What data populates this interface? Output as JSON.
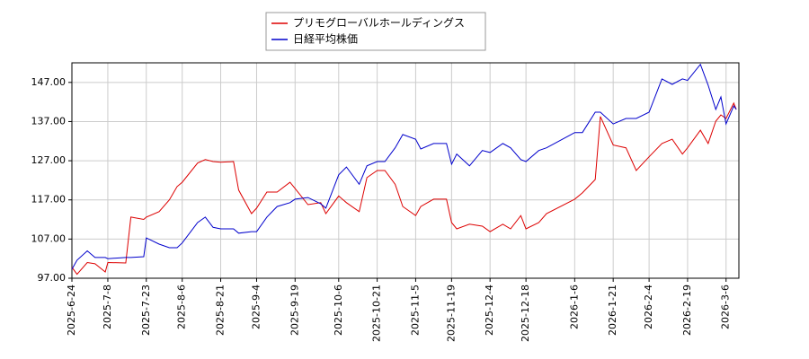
{
  "chart_data": {
    "type": "line",
    "x": [
      "2025-6-24",
      "2025-6-26",
      "2025-6-30",
      "2025-7-3",
      "2025-7-7",
      "2025-7-8",
      "2025-7-15",
      "2025-7-17",
      "2025-7-22",
      "2025-7-23",
      "2025-7-28",
      "2025-8-1",
      "2025-8-4",
      "2025-8-6",
      "2025-8-12",
      "2025-8-15",
      "2025-8-18",
      "2025-8-21",
      "2025-8-26",
      "2025-8-28",
      "2025-9-2",
      "2025-9-4",
      "2025-9-8",
      "2025-9-12",
      "2025-9-17",
      "2025-9-19",
      "2025-9-24",
      "2025-9-29",
      "2025-10-1",
      "2025-10-6",
      "2025-10-9",
      "2025-10-14",
      "2025-10-17",
      "2025-10-21",
      "2025-10-24",
      "2025-10-28",
      "2025-10-31",
      "2025-11-5",
      "2025-11-7",
      "2025-11-12",
      "2025-11-17",
      "2025-11-19",
      "2025-11-21",
      "2025-11-26",
      "2025-12-1",
      "2025-12-4",
      "2025-12-9",
      "2025-12-12",
      "2025-12-16",
      "2025-12-18",
      "2025-12-23",
      "2025-12-26",
      "2026-1-6",
      "2026-1-9",
      "2026-1-14",
      "2026-1-16",
      "2026-1-21",
      "2026-1-26",
      "2026-1-30",
      "2026-2-4",
      "2026-2-9",
      "2026-2-13",
      "2026-2-17",
      "2026-2-19",
      "2026-2-24",
      "2026-2-27",
      "2026-3-2",
      "2026-3-4",
      "2026-3-6",
      "2026-3-9",
      "2026-3-10"
    ],
    "series": [
      {
        "name": "プリモグローバルホールディングス",
        "color": "#dd0000",
        "values": [
          99.8,
          98,
          101,
          100.7,
          98.6,
          101,
          100.9,
          112.6,
          112,
          112.6,
          114,
          117,
          120.4,
          121.5,
          126.4,
          127.3,
          126.8,
          126.6,
          126.8,
          119.5,
          113.5,
          114.9,
          119,
          119,
          121.5,
          119.9,
          115.8,
          116.3,
          113.5,
          118,
          116.3,
          114,
          122.7,
          124.5,
          124.5,
          121,
          115.3,
          113,
          115.3,
          117.2,
          117.2,
          111.2,
          109.6,
          110.8,
          110.3,
          108.9,
          110.8,
          109.6,
          113,
          109.6,
          111.2,
          113.5,
          117.2,
          118.8,
          122.2,
          138.3,
          131,
          130.3,
          124.5,
          128,
          131.4,
          132.5,
          128.7,
          130.3,
          134.8,
          131.4,
          137.1,
          138.7,
          137.8,
          141.7,
          140.1
        ]
      },
      {
        "name": "日経平均株価",
        "color": "#0000cc",
        "values": [
          99.3,
          101.6,
          104,
          102.3,
          102.3,
          102,
          102.3,
          102.3,
          102.5,
          107.3,
          105.7,
          104.8,
          104.8,
          106,
          111.2,
          112.6,
          110,
          109.6,
          109.6,
          108.5,
          108.9,
          108.9,
          112.6,
          115.3,
          116.3,
          117.2,
          117.6,
          116,
          114.9,
          123.4,
          125.4,
          121,
          125.7,
          126.8,
          126.8,
          130.3,
          133.7,
          132.5,
          130,
          131.4,
          131.4,
          126.1,
          128.7,
          125.7,
          129.6,
          129.1,
          131.4,
          130.3,
          127.3,
          126.8,
          129.6,
          130.3,
          134.2,
          134.2,
          139.4,
          139.4,
          136.4,
          137.8,
          137.8,
          139.4,
          147.9,
          146.5,
          147.9,
          147.5,
          151.6,
          146.3,
          140.1,
          143.3,
          136.4,
          141,
          140.1
        ]
      }
    ],
    "xlim": [
      "2025-6-24",
      "2026-3-11"
    ],
    "xticks": [
      "2025-6-24",
      "2025-7-8",
      "2025-7-23",
      "2025-8-6",
      "2025-8-21",
      "2025-9-4",
      "2025-9-19",
      "2025-10-6",
      "2025-10-21",
      "2025-11-5",
      "2025-11-19",
      "2025-12-4",
      "2025-12-18",
      "2026-1-6",
      "2026-1-21",
      "2026-2-4",
      "2026-2-19",
      "2026-3-6"
    ],
    "ylim": [
      97,
      152
    ],
    "yticks": [
      {
        "value": 97,
        "label": "97.00"
      },
      {
        "value": 107,
        "label": "107.00"
      },
      {
        "value": 117,
        "label": "117.00"
      },
      {
        "value": 127,
        "label": "127.00"
      },
      {
        "value": 137,
        "label": "137.00"
      },
      {
        "value": 147,
        "label": "147.00"
      }
    ],
    "grid": true
  }
}
